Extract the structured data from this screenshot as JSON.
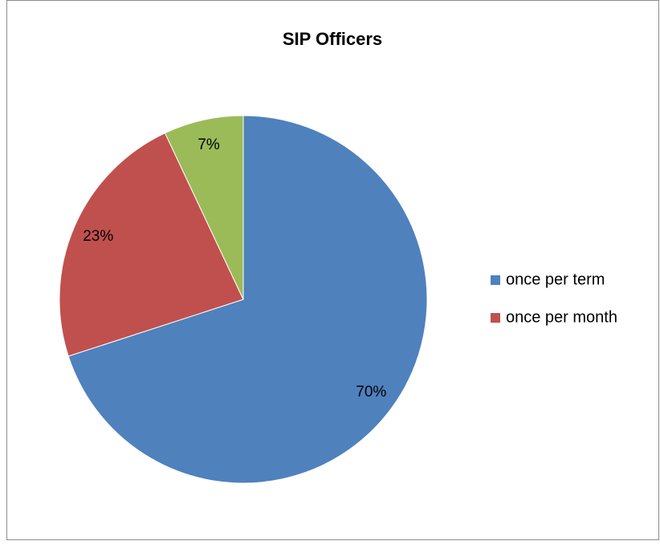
{
  "chart_data": {
    "type": "pie",
    "title": "SIP Officers",
    "categories": [
      "once per term",
      "once per month",
      null
    ],
    "values": [
      70,
      23,
      7
    ],
    "value_labels": [
      "70%",
      "23%",
      "7%"
    ],
    "colors": [
      "#4f81bd",
      "#c0504d",
      "#9bbb59"
    ],
    "legend": "right"
  }
}
